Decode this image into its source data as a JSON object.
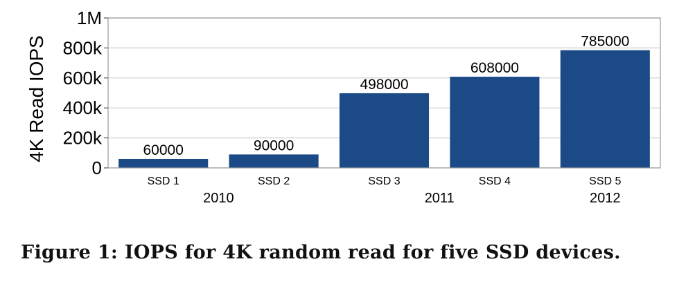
{
  "chart_data": {
    "type": "bar",
    "categories": [
      "SSD 1",
      "SSD 2",
      "SSD 3",
      "SSD 4",
      "SSD 5"
    ],
    "values": [
      60000,
      90000,
      498000,
      608000,
      785000
    ],
    "data_labels": [
      "60000",
      "90000",
      "498000",
      "608000",
      "785000"
    ],
    "groups": [
      {
        "label": "2010",
        "categories": [
          "SSD 1",
          "SSD 2"
        ]
      },
      {
        "label": "2011",
        "categories": [
          "SSD 3",
          "SSD 4"
        ]
      },
      {
        "label": "2012",
        "categories": [
          "SSD 5"
        ]
      }
    ],
    "ylabel": "4K Read IOPS",
    "ylim": [
      0,
      1000000
    ],
    "yticks": [
      0,
      200000,
      400000,
      600000,
      800000,
      1000000
    ],
    "ytick_labels": [
      "0",
      "200k",
      "400k",
      "600k",
      "800k",
      "1M"
    ],
    "grid": true,
    "bar_color": "#1b4a86"
  },
  "caption": "Figure 1: IOPS for 4K random read for five SSD devices."
}
